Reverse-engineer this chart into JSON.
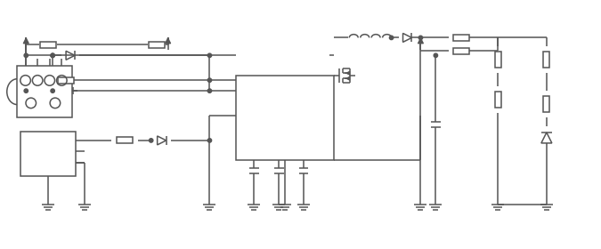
{
  "background_color": "#ffffff",
  "line_color": "#555555",
  "line_width": 1.1,
  "fig_width": 6.75,
  "fig_height": 2.8
}
